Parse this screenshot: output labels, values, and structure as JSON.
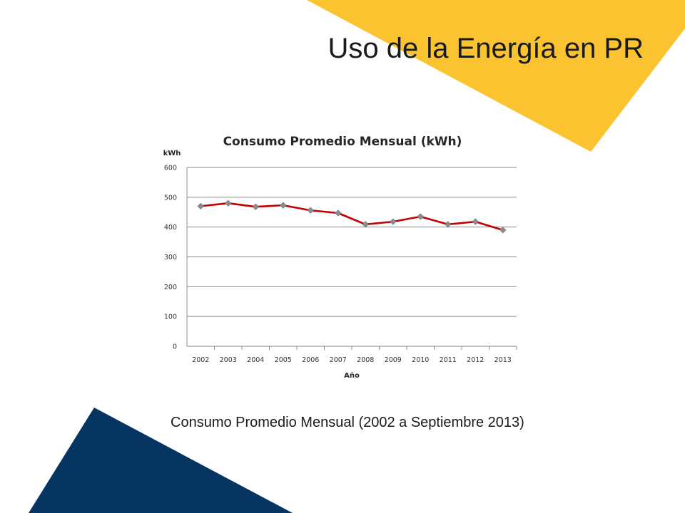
{
  "slide": {
    "title": "Uso de la Energía en PR",
    "caption": "Consumo Promedio Mensual (2002 a Septiembre 2013)",
    "colors": {
      "accent_yellow": "#FCC330",
      "accent_navy": "#053560"
    }
  },
  "chart_data": {
    "type": "line",
    "title": "Consumo Promedio Mensual (kWh)",
    "xlabel": "Año",
    "ylabel": "kWh",
    "categories": [
      "2002",
      "2003",
      "2004",
      "2005",
      "2006",
      "2007",
      "2008",
      "2009",
      "2010",
      "2011",
      "2012",
      "2013"
    ],
    "series": [
      {
        "values": [
          470,
          480,
          468,
          473,
          456,
          447,
          409,
          418,
          435,
          409,
          418,
          390
        ],
        "color": "#C00000",
        "marker_color": "#8C8C8C"
      }
    ],
    "ylim": [
      0,
      600
    ],
    "yticks": [
      0,
      100,
      200,
      300,
      400,
      500,
      600
    ],
    "grid": true,
    "legend": "none"
  }
}
